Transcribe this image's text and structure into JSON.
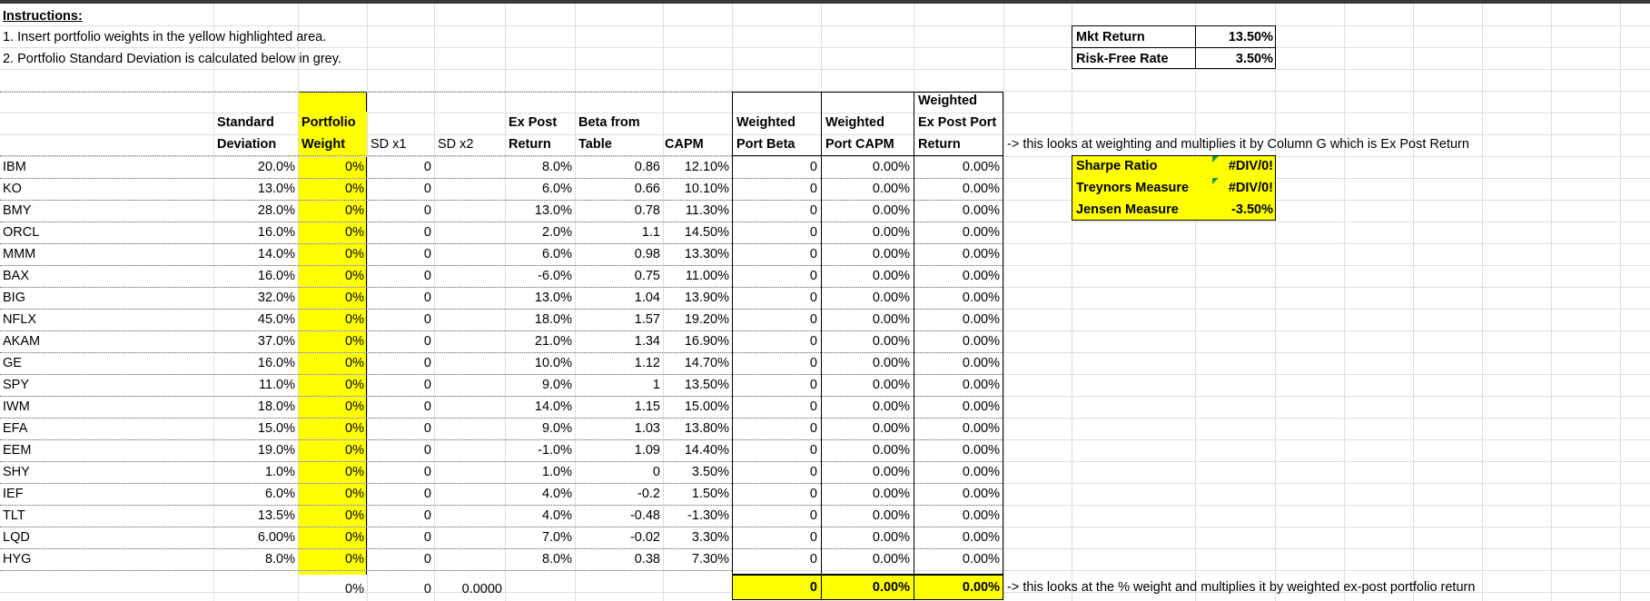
{
  "instructions": {
    "title": "Instructions:",
    "line1": "1.  Insert portfolio weights in the yellow highlighted area.",
    "line2": "2.  Portfolio Standard Deviation is calculated below in grey."
  },
  "market": {
    "mkt_return_label": "Mkt Return",
    "mkt_return_value": "13.50%",
    "rf_label": "Risk-Free Rate",
    "rf_value": "3.50%"
  },
  "headers": {
    "sd": [
      "Standard",
      "Deviation"
    ],
    "weight": [
      "Portfolio",
      "Weight"
    ],
    "sdx1": "SD x1",
    "sdx2": "SD x2",
    "expost": [
      "Ex Post",
      "Return"
    ],
    "beta": [
      "Beta from",
      "Table"
    ],
    "capm": "CAPM",
    "wbeta": [
      "Weighted",
      "Port Beta"
    ],
    "wcapm": [
      "Weighted",
      "Port CAPM"
    ],
    "wexpost": [
      "Weighted",
      "Ex Post Port",
      "Return"
    ]
  },
  "notes": {
    "row_note": "-> this looks at weighting and multiplies it by Column G which is Ex Post Return",
    "total_note": "-> this looks at the % weight and multiplies it by weighted ex-post portfolio return"
  },
  "metrics": [
    {
      "label": "Sharpe Ratio",
      "value": "#DIV/0!"
    },
    {
      "label": "Treynors Measure",
      "value": "#DIV/0!"
    },
    {
      "label": "Jensen Measure",
      "value": "-3.50%"
    }
  ],
  "rows": [
    {
      "ticker": "IBM",
      "sd": "20.0%",
      "weight": "0%",
      "sdx1": "0",
      "expost": "8.0%",
      "beta": "0.86",
      "capm": "12.10%",
      "wbeta": "0",
      "wcapm": "0.00%",
      "wexpost": "0.00%"
    },
    {
      "ticker": "KO",
      "sd": "13.0%",
      "weight": "0%",
      "sdx1": "0",
      "expost": "6.0%",
      "beta": "0.66",
      "capm": "10.10%",
      "wbeta": "0",
      "wcapm": "0.00%",
      "wexpost": "0.00%"
    },
    {
      "ticker": "BMY",
      "sd": "28.0%",
      "weight": "0%",
      "sdx1": "0",
      "expost": "13.0%",
      "beta": "0.78",
      "capm": "11.30%",
      "wbeta": "0",
      "wcapm": "0.00%",
      "wexpost": "0.00%"
    },
    {
      "ticker": "ORCL",
      "sd": "16.0%",
      "weight": "0%",
      "sdx1": "0",
      "expost": "2.0%",
      "beta": "1.1",
      "capm": "14.50%",
      "wbeta": "0",
      "wcapm": "0.00%",
      "wexpost": "0.00%"
    },
    {
      "ticker": "MMM",
      "sd": "14.0%",
      "weight": "0%",
      "sdx1": "0",
      "expost": "6.0%",
      "beta": "0.98",
      "capm": "13.30%",
      "wbeta": "0",
      "wcapm": "0.00%",
      "wexpost": "0.00%"
    },
    {
      "ticker": "BAX",
      "sd": "16.0%",
      "weight": "0%",
      "sdx1": "0",
      "expost": "-6.0%",
      "beta": "0.75",
      "capm": "11.00%",
      "wbeta": "0",
      "wcapm": "0.00%",
      "wexpost": "0.00%"
    },
    {
      "ticker": "BIG",
      "sd": "32.0%",
      "weight": "0%",
      "sdx1": "0",
      "expost": "13.0%",
      "beta": "1.04",
      "capm": "13.90%",
      "wbeta": "0",
      "wcapm": "0.00%",
      "wexpost": "0.00%"
    },
    {
      "ticker": "NFLX",
      "sd": "45.0%",
      "weight": "0%",
      "sdx1": "0",
      "expost": "18.0%",
      "beta": "1.57",
      "capm": "19.20%",
      "wbeta": "0",
      "wcapm": "0.00%",
      "wexpost": "0.00%"
    },
    {
      "ticker": "AKAM",
      "sd": "37.0%",
      "weight": "0%",
      "sdx1": "0",
      "expost": "21.0%",
      "beta": "1.34",
      "capm": "16.90%",
      "wbeta": "0",
      "wcapm": "0.00%",
      "wexpost": "0.00%"
    },
    {
      "ticker": "GE",
      "sd": "16.0%",
      "weight": "0%",
      "sdx1": "0",
      "expost": "10.0%",
      "beta": "1.12",
      "capm": "14.70%",
      "wbeta": "0",
      "wcapm": "0.00%",
      "wexpost": "0.00%"
    },
    {
      "ticker": "SPY",
      "sd": "11.0%",
      "weight": "0%",
      "sdx1": "0",
      "expost": "9.0%",
      "beta": "1",
      "capm": "13.50%",
      "wbeta": "0",
      "wcapm": "0.00%",
      "wexpost": "0.00%"
    },
    {
      "ticker": "IWM",
      "sd": "18.0%",
      "weight": "0%",
      "sdx1": "0",
      "expost": "14.0%",
      "beta": "1.15",
      "capm": "15.00%",
      "wbeta": "0",
      "wcapm": "0.00%",
      "wexpost": "0.00%"
    },
    {
      "ticker": "EFA",
      "sd": "15.0%",
      "weight": "0%",
      "sdx1": "0",
      "expost": "9.0%",
      "beta": "1.03",
      "capm": "13.80%",
      "wbeta": "0",
      "wcapm": "0.00%",
      "wexpost": "0.00%"
    },
    {
      "ticker": "EEM",
      "sd": "19.0%",
      "weight": "0%",
      "sdx1": "0",
      "expost": "-1.0%",
      "beta": "1.09",
      "capm": "14.40%",
      "wbeta": "0",
      "wcapm": "0.00%",
      "wexpost": "0.00%"
    },
    {
      "ticker": "SHY",
      "sd": "1.0%",
      "weight": "0%",
      "sdx1": "0",
      "expost": "1.0%",
      "beta": "0",
      "capm": "3.50%",
      "wbeta": "0",
      "wcapm": "0.00%",
      "wexpost": "0.00%"
    },
    {
      "ticker": "IEF",
      "sd": "6.0%",
      "weight": "0%",
      "sdx1": "0",
      "expost": "4.0%",
      "beta": "-0.2",
      "capm": "1.50%",
      "wbeta": "0",
      "wcapm": "0.00%",
      "wexpost": "0.00%"
    },
    {
      "ticker": "TLT",
      "sd": "13.5%",
      "weight": "0%",
      "sdx1": "0",
      "expost": "4.0%",
      "beta": "-0.48",
      "capm": "-1.30%",
      "wbeta": "0",
      "wcapm": "0.00%",
      "wexpost": "0.00%"
    },
    {
      "ticker": "LQD",
      "sd": "6.00%",
      "weight": "0%",
      "sdx1": "0",
      "expost": "7.0%",
      "beta": "-0.02",
      "capm": "3.30%",
      "wbeta": "0",
      "wcapm": "0.00%",
      "wexpost": "0.00%"
    },
    {
      "ticker": "HYG",
      "sd": "8.0%",
      "weight": "0%",
      "sdx1": "0",
      "expost": "8.0%",
      "beta": "0.38",
      "capm": "7.30%",
      "wbeta": "0",
      "wcapm": "0.00%",
      "wexpost": "0.00%"
    }
  ],
  "totals": {
    "weight": "0%",
    "sdx1": "0",
    "sdx2": "0.0000",
    "wbeta": "0",
    "wcapm": "0.00%",
    "wexpost": "0.00%"
  }
}
